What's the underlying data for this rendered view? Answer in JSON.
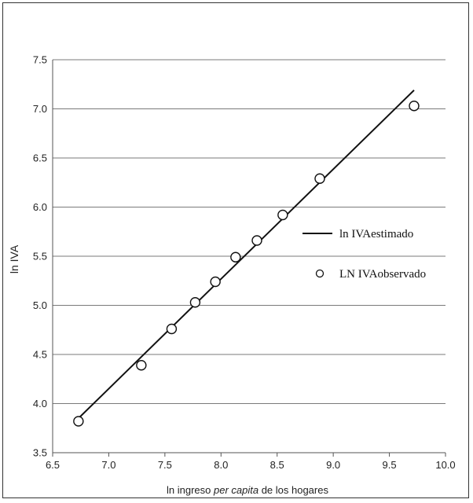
{
  "chart_data": {
    "type": "scatter",
    "xlabel_parts": [
      "ln ingreso ",
      "per capita",
      " de los hogares"
    ],
    "ylabel": "ln IVA",
    "xlim": [
      6.5,
      10.0
    ],
    "ylim": [
      3.5,
      7.5
    ],
    "xticks": [
      "6.5",
      "7.0",
      "7.5",
      "8.0",
      "8.5",
      "9.0",
      "9.5",
      "10.0"
    ],
    "yticks": [
      "3.5",
      "4.0",
      "4.5",
      "5.0",
      "5.5",
      "6.0",
      "6.5",
      "7.0",
      "7.5"
    ],
    "grid": "horizontal",
    "legend_position": "right",
    "series": [
      {
        "name": "ln IVAestimado",
        "kind": "line",
        "x": [
          6.73,
          9.72
        ],
        "y": [
          3.85,
          7.19
        ]
      },
      {
        "name": "LN IVAobservado",
        "kind": "marker",
        "x": [
          6.73,
          7.29,
          7.56,
          7.77,
          7.95,
          8.13,
          8.32,
          8.55,
          8.88,
          9.72
        ],
        "y": [
          3.82,
          4.39,
          4.76,
          5.03,
          5.24,
          5.49,
          5.66,
          5.92,
          6.29,
          7.03
        ]
      }
    ]
  }
}
